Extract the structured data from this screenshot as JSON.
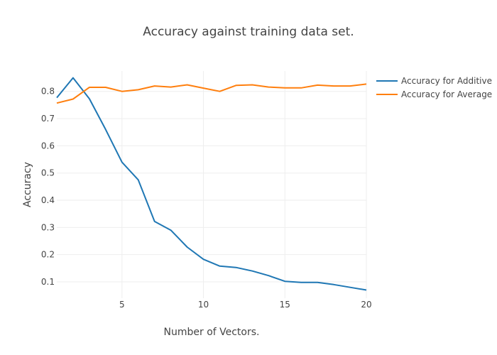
{
  "chart_data": {
    "type": "line",
    "title": "Accuracy against training data set.",
    "xlabel": "Number of Vectors.",
    "ylabel": "Accuracy",
    "xlim": [
      1,
      20
    ],
    "ylim": [
      0.04,
      0.875
    ],
    "xticks": [
      5,
      10,
      15,
      20
    ],
    "yticks": [
      0.1,
      0.2,
      0.3,
      0.4,
      0.5,
      0.6,
      0.7,
      0.8
    ],
    "grid": true,
    "legend_position": "top-right",
    "x": [
      1,
      2,
      3,
      4,
      5,
      6,
      7,
      8,
      9,
      10,
      11,
      12,
      13,
      14,
      15,
      16,
      17,
      18,
      19,
      20
    ],
    "series": [
      {
        "name": "Accuracy for Additive",
        "color": "#1f77b4",
        "values": [
          0.777,
          0.85,
          0.773,
          0.66,
          0.54,
          0.475,
          0.322,
          0.29,
          0.228,
          0.183,
          0.158,
          0.153,
          0.14,
          0.123,
          0.102,
          0.098,
          0.098,
          0.09,
          0.08,
          0.07
        ]
      },
      {
        "name": "Accuracy for Average",
        "color": "#ff7f0e",
        "values": [
          0.757,
          0.772,
          0.815,
          0.815,
          0.8,
          0.806,
          0.82,
          0.816,
          0.824,
          0.812,
          0.8,
          0.822,
          0.824,
          0.816,
          0.813,
          0.813,
          0.823,
          0.82,
          0.82,
          0.827
        ]
      }
    ]
  }
}
